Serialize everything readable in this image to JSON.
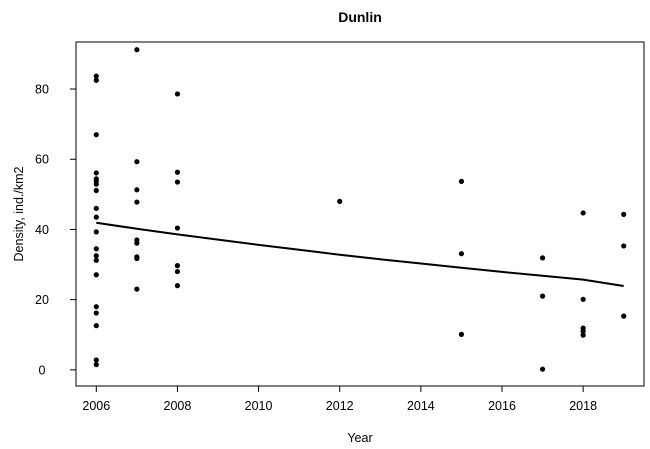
{
  "chart_data": {
    "type": "scatter",
    "title": "Dunlin",
    "xlabel": "Year",
    "ylabel": "Density, ind./km2",
    "xlim": [
      2005.5,
      2019.5
    ],
    "ylim": [
      -4.6,
      93.4
    ],
    "grid": false,
    "x_ticks": [
      2006,
      2008,
      2010,
      2012,
      2014,
      2016,
      2018
    ],
    "x_tick_labels": [
      "2006",
      "2008",
      "2010",
      "2012",
      "2014",
      "2016",
      "2018"
    ],
    "y_ticks": [
      0,
      20,
      40,
      60,
      80
    ],
    "y_tick_labels": [
      "0",
      "20",
      "40",
      "60",
      "80"
    ],
    "series": [
      {
        "type": "scatter",
        "color": "#000000",
        "points": [
          [
            2006,
            83.7
          ],
          [
            2006,
            82.5
          ],
          [
            2006,
            67.0
          ],
          [
            2006,
            56.1
          ],
          [
            2006,
            54.4
          ],
          [
            2006,
            53.8
          ],
          [
            2006,
            52.9
          ],
          [
            2006,
            51.1
          ],
          [
            2006,
            46.0
          ],
          [
            2006,
            43.5
          ],
          [
            2006,
            39.3
          ],
          [
            2006,
            34.5
          ],
          [
            2006,
            32.5
          ],
          [
            2006,
            31.2
          ],
          [
            2006,
            27.1
          ],
          [
            2006,
            18.0
          ],
          [
            2006,
            16.2
          ],
          [
            2006,
            12.6
          ],
          [
            2006,
            2.8
          ],
          [
            2006,
            1.5
          ],
          [
            2007,
            91.2
          ],
          [
            2007,
            59.3
          ],
          [
            2007,
            51.3
          ],
          [
            2007,
            47.8
          ],
          [
            2007,
            37.0
          ],
          [
            2007,
            36.1
          ],
          [
            2007,
            32.2
          ],
          [
            2007,
            31.7
          ],
          [
            2007,
            23.0
          ],
          [
            2008,
            78.6
          ],
          [
            2008,
            56.3
          ],
          [
            2008,
            53.5
          ],
          [
            2008,
            40.4
          ],
          [
            2008,
            29.7
          ],
          [
            2008,
            28.0
          ],
          [
            2008,
            24.0
          ],
          [
            2012,
            48.0
          ],
          [
            2015,
            53.7
          ],
          [
            2015,
            33.1
          ],
          [
            2015,
            10.1
          ],
          [
            2017,
            31.9
          ],
          [
            2017,
            21.0
          ],
          [
            2017,
            0.2
          ],
          [
            2018,
            44.7
          ],
          [
            2018,
            20.1
          ],
          [
            2018,
            11.9
          ],
          [
            2018,
            11.0
          ],
          [
            2018,
            9.9
          ],
          [
            2019,
            44.3
          ],
          [
            2019,
            35.3
          ],
          [
            2019,
            15.3
          ]
        ]
      },
      {
        "type": "line",
        "color": "#000000",
        "points": [
          [
            2006,
            41.9
          ],
          [
            2007,
            40.2
          ],
          [
            2008,
            38.6
          ],
          [
            2009,
            37.1
          ],
          [
            2010,
            35.6
          ],
          [
            2011,
            34.2
          ],
          [
            2012,
            32.8
          ],
          [
            2013,
            31.5
          ],
          [
            2014,
            30.3
          ],
          [
            2015,
            29.1
          ],
          [
            2016,
            27.9
          ],
          [
            2017,
            26.8
          ],
          [
            2018,
            25.7
          ],
          [
            2019,
            23.9
          ]
        ]
      }
    ]
  }
}
